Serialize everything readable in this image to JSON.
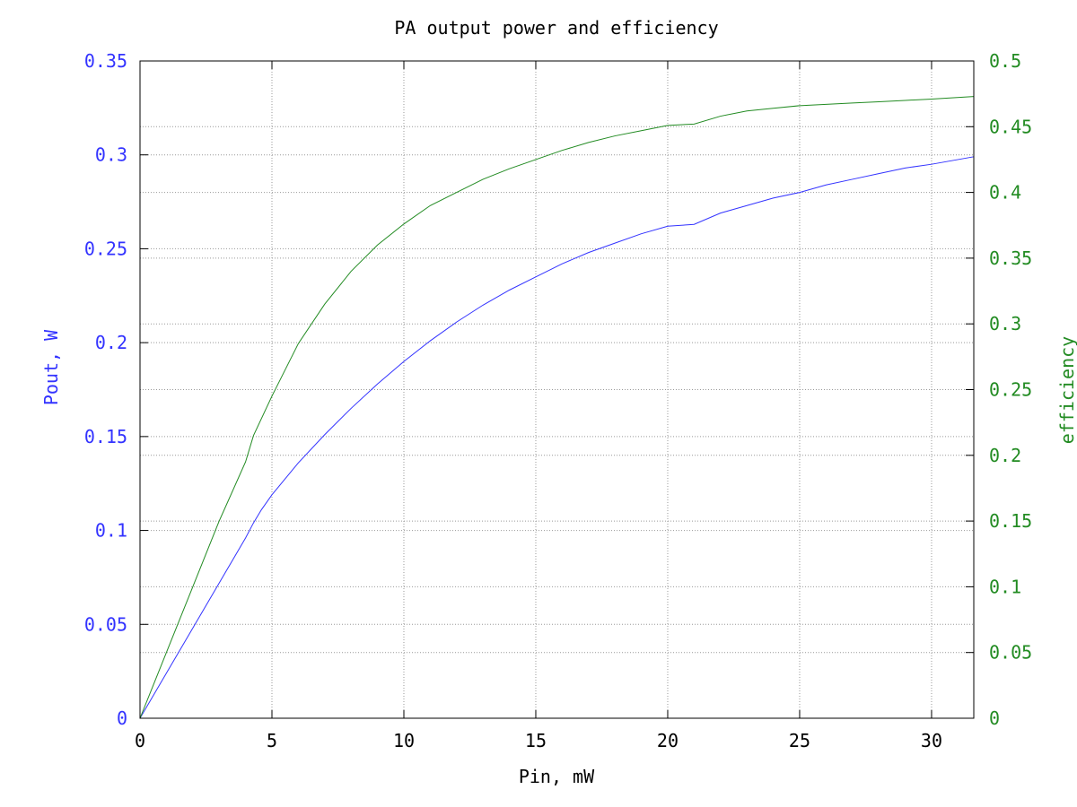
{
  "chart_data": {
    "type": "line",
    "title": "PA output power and efficiency",
    "xlabel": "Pin, mW",
    "ylabel": "Pout, W",
    "y2label": "efficiency",
    "xlim": [
      0,
      31.6
    ],
    "ylim": [
      0,
      0.35
    ],
    "y2lim": [
      0,
      0.5
    ],
    "grid": true,
    "x_ticks": [
      "0",
      "5",
      "10",
      "15",
      "20",
      "25",
      "30"
    ],
    "y_ticks": [
      "0",
      "0.05",
      "0.1",
      "0.15",
      "0.2",
      "0.25",
      "0.3",
      "0.35"
    ],
    "y2_ticks": [
      "0",
      "0.05",
      "0.1",
      "0.15",
      "0.2",
      "0.25",
      "0.3",
      "0.35",
      "0.4",
      "0.45",
      "0.5"
    ],
    "colors": {
      "pout": "#3333ff",
      "efficiency": "#228b22",
      "grid": "#999999",
      "axis": "#000000"
    },
    "series": [
      {
        "key": "pout",
        "axis": "left",
        "color": "#3333ff",
        "x": [
          0,
          1,
          2,
          3,
          4,
          4.3,
          4.6,
          5,
          6,
          7,
          8,
          9,
          10,
          11,
          12,
          13,
          14,
          15,
          16,
          17,
          18,
          19,
          20,
          21,
          22,
          23,
          24,
          25,
          26,
          27,
          28,
          29,
          30,
          31.6
        ],
        "y": [
          0,
          0.024,
          0.048,
          0.072,
          0.096,
          0.104,
          0.111,
          0.119,
          0.136,
          0.151,
          0.165,
          0.178,
          0.19,
          0.201,
          0.211,
          0.22,
          0.228,
          0.235,
          0.242,
          0.248,
          0.253,
          0.258,
          0.262,
          0.263,
          0.269,
          0.273,
          0.277,
          0.28,
          0.284,
          0.287,
          0.29,
          0.293,
          0.295,
          0.299
        ]
      },
      {
        "key": "efficiency",
        "axis": "right",
        "color": "#228b22",
        "x": [
          0,
          1,
          2,
          3,
          4,
          4.3,
          5,
          6,
          7,
          8,
          9,
          10,
          11,
          12,
          13,
          14,
          15,
          16,
          17,
          18,
          19,
          20,
          21,
          22,
          23,
          24,
          25,
          26,
          27,
          28,
          29,
          30,
          31.6
        ],
        "y": [
          0,
          0.05,
          0.1,
          0.15,
          0.195,
          0.215,
          0.245,
          0.285,
          0.315,
          0.34,
          0.36,
          0.376,
          0.39,
          0.4,
          0.41,
          0.418,
          0.425,
          0.432,
          0.438,
          0.443,
          0.447,
          0.451,
          0.452,
          0.458,
          0.462,
          0.464,
          0.466,
          0.467,
          0.468,
          0.469,
          0.47,
          0.471,
          0.473
        ]
      }
    ]
  }
}
